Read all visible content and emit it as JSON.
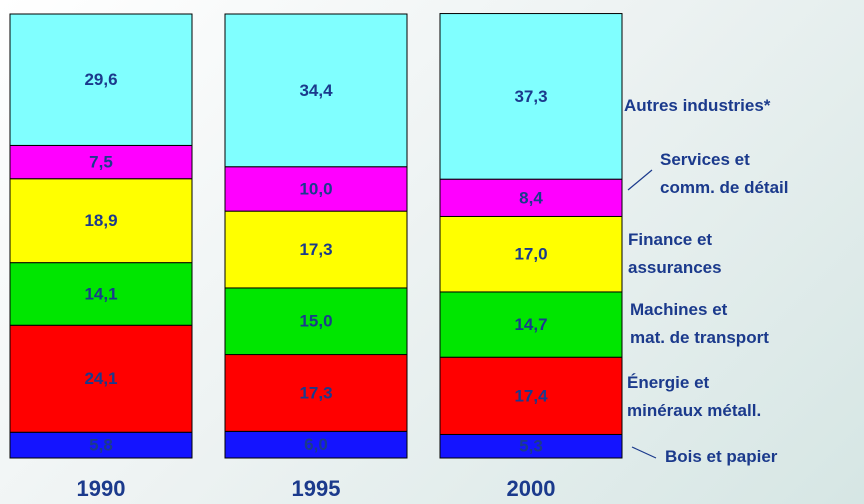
{
  "chart_data": {
    "type": "stacked-bar",
    "categories": [
      "1990",
      "1995",
      "2000"
    ],
    "ylim": [
      0,
      100
    ],
    "series": [
      {
        "name": "Bois et papier",
        "color": "#1414ff",
        "values": [
          5.8,
          6.0,
          5.3
        ],
        "value_labels": [
          "5,8",
          "6,0",
          "5,3"
        ]
      },
      {
        "name": "Énergie et\nminéraux métall.",
        "color": "#ff0000",
        "values": [
          24.1,
          17.3,
          17.4
        ],
        "value_labels": [
          "24,1",
          "17,3",
          "17,4"
        ]
      },
      {
        "name": "Machines et\nmat. de transport",
        "color": "#00e600",
        "values": [
          14.1,
          15.0,
          14.7
        ],
        "value_labels": [
          "14,1",
          "15,0",
          "14,7"
        ]
      },
      {
        "name": "Finance et\nassurances",
        "color": "#ffff00",
        "values": [
          18.9,
          17.3,
          17.0
        ],
        "value_labels": [
          "18,9",
          "17,3",
          "17,0"
        ]
      },
      {
        "name": "Services et\ncomm. de détail",
        "color": "#ff00ff",
        "values": [
          7.5,
          10.0,
          8.4
        ],
        "value_labels": [
          "7,5",
          "10,0",
          "8,4"
        ]
      },
      {
        "name": "Autres industries*",
        "color": "#80ffff",
        "values": [
          29.6,
          34.4,
          37.3
        ],
        "value_labels": [
          "29,6",
          "34,4",
          "37,3"
        ]
      }
    ]
  }
}
